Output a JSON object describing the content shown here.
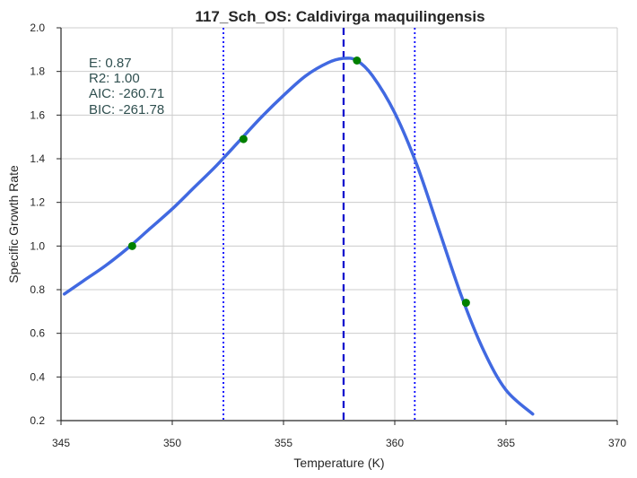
{
  "chart_data": {
    "type": "line",
    "title": "117_Sch_OS: Caldivirga maquilingensis",
    "xlabel": "Temperature (K)",
    "ylabel": "Specific Growth Rate",
    "xlim": [
      345,
      370
    ],
    "ylim": [
      0.2,
      2.0
    ],
    "x_ticks": [
      345,
      350,
      355,
      360,
      365,
      370
    ],
    "y_ticks": [
      0.2,
      0.4,
      0.6,
      0.8,
      1.0,
      1.2,
      1.4,
      1.6,
      1.8,
      2.0
    ],
    "x_tick_labels": [
      "345",
      "350",
      "355",
      "360",
      "365",
      "370"
    ],
    "y_tick_labels": [
      "0.2",
      "0.4",
      "0.6",
      "0.8",
      "1.0",
      "1.2",
      "1.4",
      "1.6",
      "1.8",
      "2.0"
    ],
    "grid": true,
    "series": [
      {
        "kind": "line",
        "color": "#4169e1",
        "x": [
          345.15,
          346,
          347,
          348,
          349,
          350,
          351,
          352,
          353,
          354,
          355,
          356,
          357,
          357.7,
          358.3,
          359,
          360,
          361,
          362,
          363,
          364,
          365,
          366.2
        ],
        "y": [
          0.78,
          0.84,
          0.91,
          0.99,
          1.08,
          1.17,
          1.27,
          1.37,
          1.48,
          1.59,
          1.69,
          1.78,
          1.84,
          1.86,
          1.85,
          1.78,
          1.61,
          1.37,
          1.07,
          0.77,
          0.52,
          0.34,
          0.23
        ]
      },
      {
        "kind": "scatter",
        "color": "#008000",
        "x": [
          348.2,
          353.2,
          358.3,
          363.2
        ],
        "y": [
          1.0,
          1.49,
          1.85,
          0.74
        ]
      }
    ],
    "vlines": [
      {
        "x": 357.7,
        "style": "dashed",
        "color": "#0000cd"
      },
      {
        "x": 352.3,
        "style": "dotted",
        "color": "#0000ff"
      },
      {
        "x": 360.9,
        "style": "dotted",
        "color": "#0000ff"
      }
    ],
    "annotations": [
      "E:  0.87",
      "R2:  1.00",
      "AIC: -260.71",
      "BIC: -261.78"
    ]
  }
}
